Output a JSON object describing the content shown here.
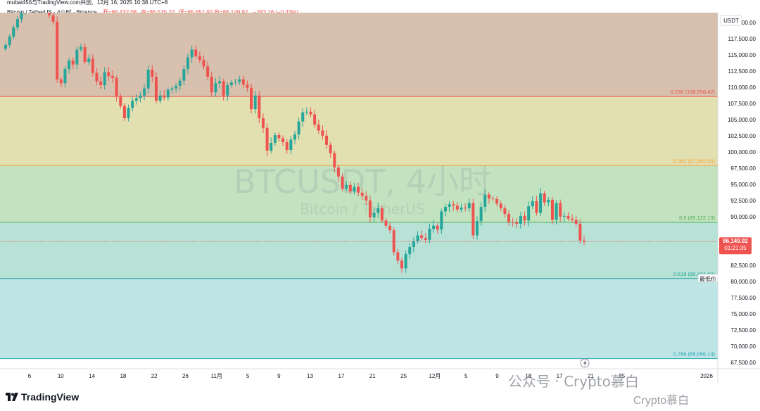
{
  "header": {
    "shared_by": "mubai456与TradingView.com共创,",
    "timestamp": "12月 16, 2025 10:38 UTC+8",
    "instrument": "Bitcoin / TetherUS · 4小时 · Binance",
    "open_label": "开=86,432.08",
    "high_label": "高=86,535.22",
    "low_label": "低=85,651.92",
    "close_label": "收=86,149.92",
    "change_label": "−282.16 (−0.33%)"
  },
  "watermark": {
    "symbol": "BTCUSDT, 4小时",
    "name": "Bitcoin / TetherUS"
  },
  "footer": {
    "brand": "TradingView",
    "brand_icon": "tradingview-logo-icon",
    "account": "Crypto慕白",
    "wechat_label": "公众号 · Crypto慕白"
  },
  "price_axis": {
    "currency": "USDT",
    "current_price": "86,149.92",
    "countdown": "01:21:35",
    "low_tag": "最低价"
  },
  "colors": {
    "up": "#26a69a",
    "down": "#ef5350",
    "zone_0_236": "#d7c0ad",
    "zone_236_382": "#e2dfb0",
    "zone_382_5": "#c3e3c0",
    "zone_5_618": "#b8e2d6",
    "zone_618_786": "#bfe5e6"
  },
  "chart_data": {
    "type": "candlestick",
    "timeframe": "4H",
    "x_ticks": [
      "6",
      "10",
      "14",
      "18",
      "22",
      "26",
      "11月",
      "5",
      "9",
      "13",
      "17",
      "21",
      "25",
      "12月",
      "5",
      "9",
      "13",
      "17",
      "21",
      "25",
      "2026"
    ],
    "y_ticks": [
      120000,
      117500,
      115000,
      112500,
      110000,
      107500,
      105000,
      102500,
      100000,
      97500,
      95000,
      92500,
      90000,
      87500,
      85000,
      82500,
      80000,
      77500,
      75000,
      72500,
      70000,
      67500
    ],
    "ylim": [
      66500,
      121500
    ],
    "fib_levels": [
      {
        "ratio": "0.236",
        "price": 108558.42,
        "label": "0.236 (108,558.42)",
        "color": "#ef5350"
      },
      {
        "ratio": "0.382",
        "price": 97885.56,
        "label": "0.382 (97,885.56)",
        "color": "#f7a63a"
      },
      {
        "ratio": "0.5",
        "price": 89122.13,
        "label": "0.5 (89,122.13)",
        "color": "#4caf50"
      },
      {
        "ratio": "0.618",
        "price": 80434.69,
        "label": "0.618 (80,434.69)",
        "color": "#26a69a"
      },
      {
        "ratio": "0.786",
        "price": 68066.14,
        "label": "0.786 (68,066.14)",
        "color": "#26a6b5"
      }
    ],
    "current_price": 86149.92,
    "closes": [
      116500,
      117800,
      119200,
      120500,
      121800,
      122800,
      123600,
      124200,
      123500,
      122900,
      121800,
      121100,
      120100,
      111200,
      110600,
      112800,
      114100,
      113500,
      115800,
      116200,
      113900,
      114400,
      112200,
      110900,
      110300,
      112300,
      111700,
      111400,
      108600,
      107100,
      105200,
      106800,
      107900,
      108300,
      108700,
      109800,
      112700,
      111600,
      107900,
      108700,
      108400,
      109600,
      109800,
      110200,
      111000,
      112800,
      114600,
      115800,
      114800,
      114200,
      113200,
      111600,
      109200,
      110600,
      110900,
      108700,
      110300,
      110700,
      110800,
      111200,
      110400,
      109900,
      106600,
      108700,
      105200,
      103700,
      100200,
      101400,
      102600,
      102100,
      101500,
      100300,
      101900,
      102700,
      104700,
      106100,
      106200,
      105800,
      104200,
      103300,
      102500,
      101100,
      99800,
      97600,
      96200,
      94300,
      94900,
      93900,
      94600,
      93700,
      93200,
      92500,
      89900,
      90600,
      91300,
      89400,
      88600,
      87900,
      84500,
      83200,
      82000,
      84200,
      85300,
      86200,
      87100,
      86700,
      86400,
      88100,
      88600,
      88000,
      90800,
      91500,
      91900,
      91700,
      91100,
      91400,
      91300,
      92100,
      87100,
      89300,
      91500,
      93400,
      92800,
      92700,
      92000,
      91300,
      90400,
      89200,
      89100,
      88900,
      90100,
      89400,
      91600,
      92400,
      90600,
      93600,
      92200,
      92600,
      89500,
      92100,
      90000,
      90100,
      89700,
      89500,
      88900,
      86300,
      86149.92
    ]
  }
}
